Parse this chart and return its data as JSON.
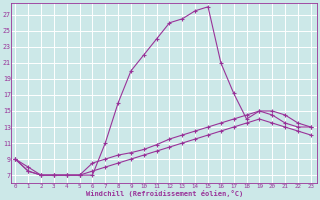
{
  "xlabel": "Windchill (Refroidissement éolien,°C)",
  "background_color": "#cce8e8",
  "grid_color": "#ffffff",
  "line_color": "#993399",
  "x_ticks": [
    0,
    1,
    2,
    3,
    4,
    5,
    6,
    7,
    8,
    9,
    10,
    11,
    12,
    13,
    14,
    15,
    16,
    17,
    18,
    19,
    20,
    21,
    22,
    23
  ],
  "y_ticks": [
    7,
    9,
    11,
    13,
    15,
    17,
    19,
    21,
    23,
    25,
    27
  ],
  "ylim": [
    6.0,
    28.5
  ],
  "xlim": [
    -0.3,
    23.5
  ],
  "curve1_x": [
    0,
    1,
    2,
    3,
    4,
    5,
    6,
    7,
    8,
    9,
    10,
    11,
    12,
    13,
    14,
    15,
    16,
    17,
    18,
    19,
    20,
    21,
    22,
    23
  ],
  "curve1_y": [
    9,
    8,
    7,
    7,
    7,
    7,
    7,
    11,
    16,
    20,
    22,
    24,
    26,
    26.5,
    27.5,
    28,
    21,
    17.2,
    14,
    15,
    14.5,
    13.5,
    13,
    13
  ],
  "curve2_x": [
    0,
    1,
    2,
    3,
    4,
    5,
    6,
    7,
    8,
    9,
    10,
    11,
    12,
    13,
    14,
    15,
    16,
    17,
    18,
    19,
    20,
    21,
    22,
    23
  ],
  "curve2_y": [
    9,
    7.5,
    7,
    7,
    7,
    7,
    8.5,
    9,
    9.5,
    9.8,
    10.2,
    10.8,
    11.5,
    12,
    12.5,
    13,
    13.5,
    14,
    14.5,
    15,
    15,
    14.5,
    13.5,
    13
  ],
  "curve3_x": [
    0,
    1,
    2,
    3,
    4,
    5,
    6,
    7,
    8,
    9,
    10,
    11,
    12,
    13,
    14,
    15,
    16,
    17,
    18,
    19,
    20,
    21,
    22,
    23
  ],
  "curve3_y": [
    9,
    7.5,
    7,
    7,
    7,
    7,
    7.5,
    8,
    8.5,
    9,
    9.5,
    10,
    10.5,
    11,
    11.5,
    12,
    12.5,
    13,
    13.5,
    14,
    13.5,
    13,
    12.5,
    12
  ]
}
